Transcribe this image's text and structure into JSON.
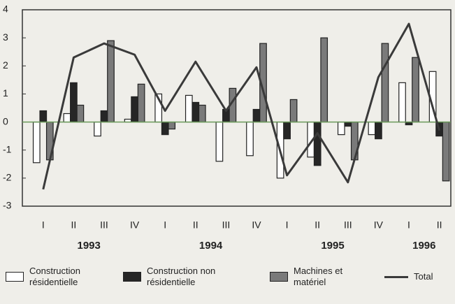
{
  "chart_data": {
    "type": "bar_line",
    "categories": [
      "I",
      "II",
      "III",
      "IV",
      "I",
      "II",
      "III",
      "IV",
      "I",
      "II",
      "III",
      "IV",
      "I",
      "II"
    ],
    "groups": [
      {
        "name": "1993",
        "count": 4
      },
      {
        "name": "1994",
        "count": 4
      },
      {
        "name": "1995",
        "count": 4
      },
      {
        "name": "1996",
        "count": 2
      }
    ],
    "series": [
      {
        "name": "Construction résidentielle",
        "kind": "bar",
        "color": "#ffffff",
        "values": [
          -1.45,
          0.3,
          -0.5,
          0.1,
          1.0,
          0.95,
          -1.4,
          -1.2,
          -2.0,
          -1.25,
          -0.45,
          -0.45,
          1.4,
          1.8
        ]
      },
      {
        "name": "Construction non résidentielle",
        "kind": "bar",
        "color": "#262626",
        "values": [
          0.4,
          1.4,
          0.4,
          0.9,
          -0.45,
          0.7,
          0.45,
          0.45,
          -0.6,
          -1.55,
          -0.15,
          -0.6,
          -0.1,
          -0.5
        ]
      },
      {
        "name": "Machines et matériel",
        "kind": "bar",
        "color": "#7a7a7a",
        "values": [
          -1.35,
          0.6,
          2.9,
          1.35,
          -0.25,
          0.6,
          1.2,
          2.8,
          0.8,
          3.0,
          -1.35,
          2.8,
          2.3,
          -2.1
        ]
      },
      {
        "name": "Total",
        "kind": "line",
        "color": "#3a3a3a",
        "values": [
          -2.4,
          2.3,
          2.8,
          2.4,
          0.4,
          2.15,
          0.4,
          1.95,
          -1.9,
          -0.4,
          -2.15,
          1.6,
          3.5,
          -0.3
        ]
      }
    ],
    "ylim": [
      -3,
      4
    ],
    "yticks": [
      -3,
      -2,
      -1,
      0,
      1,
      2,
      3,
      4
    ]
  }
}
